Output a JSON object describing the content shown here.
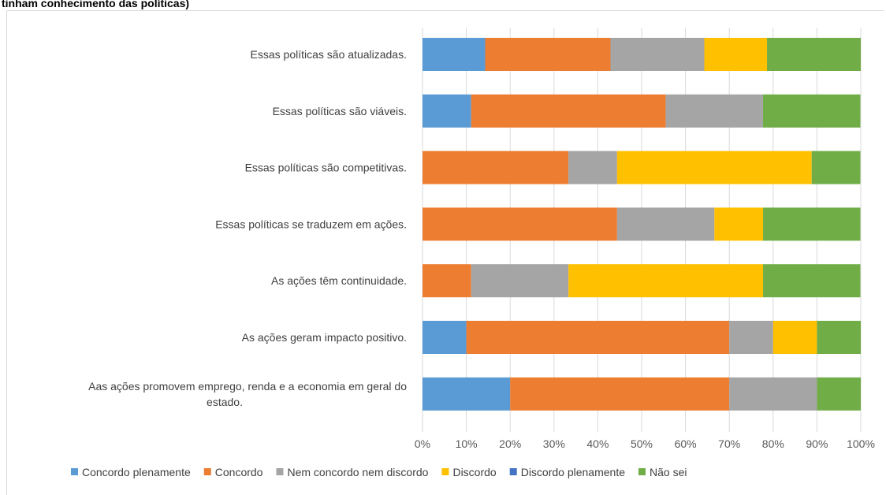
{
  "title": "tinham conhecimento das políticas)",
  "chart_data": {
    "type": "bar",
    "orientation": "horizontal",
    "stacked": "percent",
    "categories": [
      "Essas políticas são atualizadas.",
      "Essas políticas são viáveis.",
      "Essas políticas são competitivas.",
      "Essas políticas se traduzem em ações.",
      "As ações têm continuidade.",
      "As ações geram impacto positivo.",
      "Aas ações promovem emprego, renda e a economia em geral do estado."
    ],
    "category_lines": [
      [
        "Essas políticas são atualizadas."
      ],
      [
        "Essas políticas são viáveis."
      ],
      [
        "Essas políticas são competitivas."
      ],
      [
        "Essas políticas se traduzem em ações."
      ],
      [
        "As ações têm continuidade."
      ],
      [
        "As ações geram impacto positivo."
      ],
      [
        "Aas ações promovem emprego, renda e a economia em geral do",
        "estado."
      ]
    ],
    "series": [
      {
        "name": "Concordo plenamente",
        "color": "#5b9bd5",
        "values": [
          14.3,
          11.1,
          0,
          0,
          0,
          10,
          20
        ]
      },
      {
        "name": "Concordo",
        "color": "#ed7d31",
        "values": [
          28.6,
          44.4,
          33.3,
          44.4,
          11.1,
          60,
          50
        ]
      },
      {
        "name": "Nem concordo nem discordo",
        "color": "#a5a5a5",
        "values": [
          21.4,
          22.2,
          11.1,
          22.2,
          22.2,
          10,
          20
        ]
      },
      {
        "name": "Discordo",
        "color": "#ffc000",
        "values": [
          14.3,
          0,
          44.4,
          11.1,
          44.4,
          10,
          0
        ]
      },
      {
        "name": "Discordo plenamente",
        "color": "#4472c4",
        "values": [
          0,
          0,
          0,
          0,
          0,
          0,
          0
        ]
      },
      {
        "name": "Não sei",
        "color": "#70ad47",
        "values": [
          21.4,
          22.2,
          11.1,
          22.2,
          22.2,
          10,
          10
        ]
      }
    ],
    "x_ticks": [
      "0%",
      "10%",
      "20%",
      "30%",
      "40%",
      "50%",
      "60%",
      "70%",
      "80%",
      "90%",
      "100%"
    ],
    "xlim": [
      0,
      100
    ],
    "grid": true,
    "legend_position": "bottom"
  }
}
